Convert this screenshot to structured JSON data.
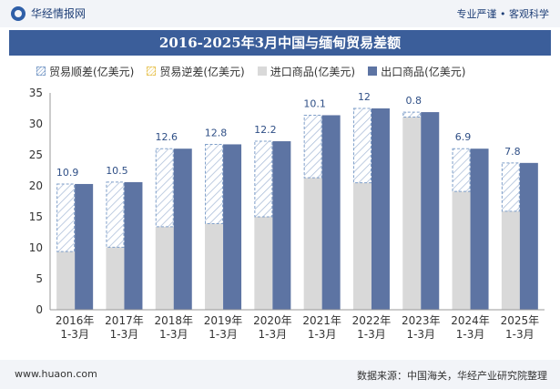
{
  "header": {
    "brand": "华经情报网",
    "tagline": "专业严谨 • 客观科学"
  },
  "footer": {
    "website": "www.huaon.com",
    "source": "数据来源：中国海关，华经产业研究院整理"
  },
  "colors": {
    "export": "#5d74a3",
    "import": "#d9d9d9",
    "surplus_stroke": "#7f9fc9",
    "deficit_stroke": "#e8c55a"
  },
  "chart_data": {
    "type": "bar",
    "title": "2016-2025年3月中国与缅甸贸易差额",
    "categories": [
      "2016年\n1-3月",
      "2017年\n1-3月",
      "2018年\n1-3月",
      "2019年\n1-3月",
      "2020年\n1-3月",
      "2021年\n1-3月",
      "2022年\n1-3月",
      "2023年\n1-3月",
      "2024年\n1-3月",
      "2025年\n1-3月"
    ],
    "legend": [
      "贸易顺差(亿美元)",
      "贸易逆差(亿美元)",
      "进口商品(亿美元)",
      "出口商品(亿美元)"
    ],
    "series": [
      {
        "name": "进口商品(亿美元)",
        "values": [
          9.4,
          10.1,
          13.4,
          13.9,
          15.0,
          21.3,
          20.5,
          31.1,
          19.1,
          15.9
        ]
      },
      {
        "name": "出口商品(亿美元)",
        "values": [
          20.3,
          20.6,
          26.0,
          26.7,
          27.2,
          31.4,
          32.5,
          31.9,
          26.0,
          23.7
        ]
      },
      {
        "name": "贸易顺差(亿美元)",
        "values": [
          10.9,
          10.5,
          12.6,
          12.8,
          12.2,
          10.1,
          12.0,
          0.8,
          6.9,
          7.8
        ]
      }
    ],
    "surplus_labels": [
      "10.9",
      "10.5",
      "12.6",
      "12.8",
      "12.2",
      "10.1",
      "12",
      "0.8",
      "6.9",
      "7.8"
    ],
    "ylim": [
      0,
      35
    ],
    "yticks": [
      0,
      5,
      10,
      15,
      20,
      25,
      30,
      35
    ]
  }
}
